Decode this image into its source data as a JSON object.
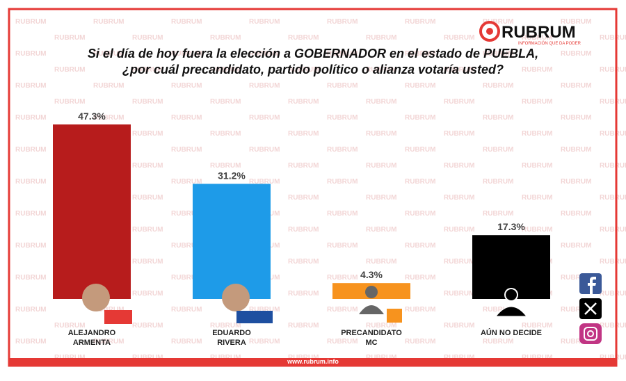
{
  "chart_data": {
    "type": "bar",
    "brand": "RUBRUM",
    "tagline": "INFORMACIÓN QUE DA PODER",
    "title": "Si el día de hoy fuera la elección a GOBERNADOR en el estado de PUEBLA,",
    "subtitle": "¿por cuál precandidato, partido político o alianza votaría usted?",
    "categories": [
      "ALEJANDRO ARMENTA",
      "EDUARDO RIVERA",
      "PRECANDIDATO MC",
      "AÚN NO DECIDE"
    ],
    "values": [
      47.3,
      31.2,
      4.3,
      17.3
    ],
    "value_labels": [
      "47.3%",
      "31.2%",
      "4.3%",
      "17.3%"
    ],
    "colors": [
      "#b71c1c",
      "#1e9be8",
      "#f7931e",
      "#000000"
    ],
    "footer": "www.rubrum.info"
  }
}
